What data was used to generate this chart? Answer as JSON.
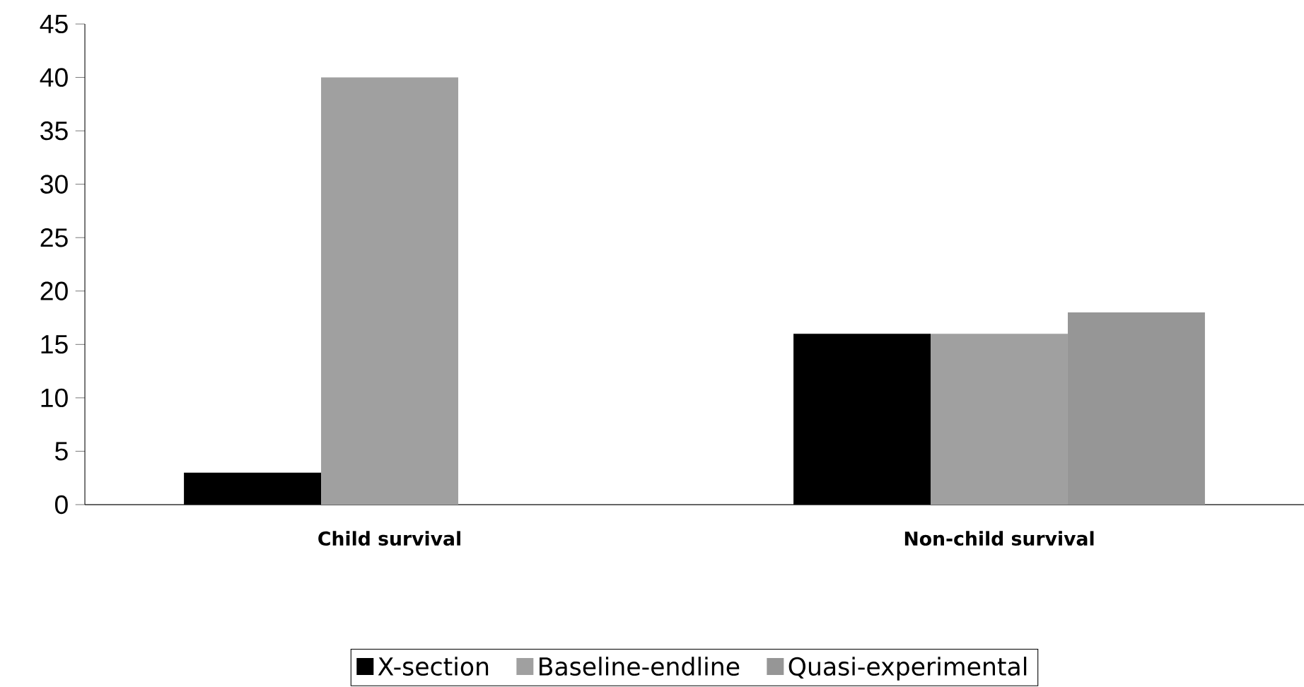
{
  "chart_data": {
    "type": "bar",
    "categories": [
      "Child survival",
      "Non-child survival"
    ],
    "series": [
      {
        "name": "X-section",
        "color": "#000000",
        "values": [
          3,
          16
        ]
      },
      {
        "name": "Baseline-endline",
        "color": "#a0a0a0",
        "values": [
          40,
          16
        ]
      },
      {
        "name": "Quasi-experimental",
        "color": "#969696",
        "values": [
          null,
          18
        ]
      }
    ],
    "ylim": [
      0,
      45
    ],
    "yticks": [
      0,
      5,
      10,
      15,
      20,
      25,
      30,
      35,
      40,
      45
    ],
    "grid": false,
    "legend": "bottom"
  }
}
